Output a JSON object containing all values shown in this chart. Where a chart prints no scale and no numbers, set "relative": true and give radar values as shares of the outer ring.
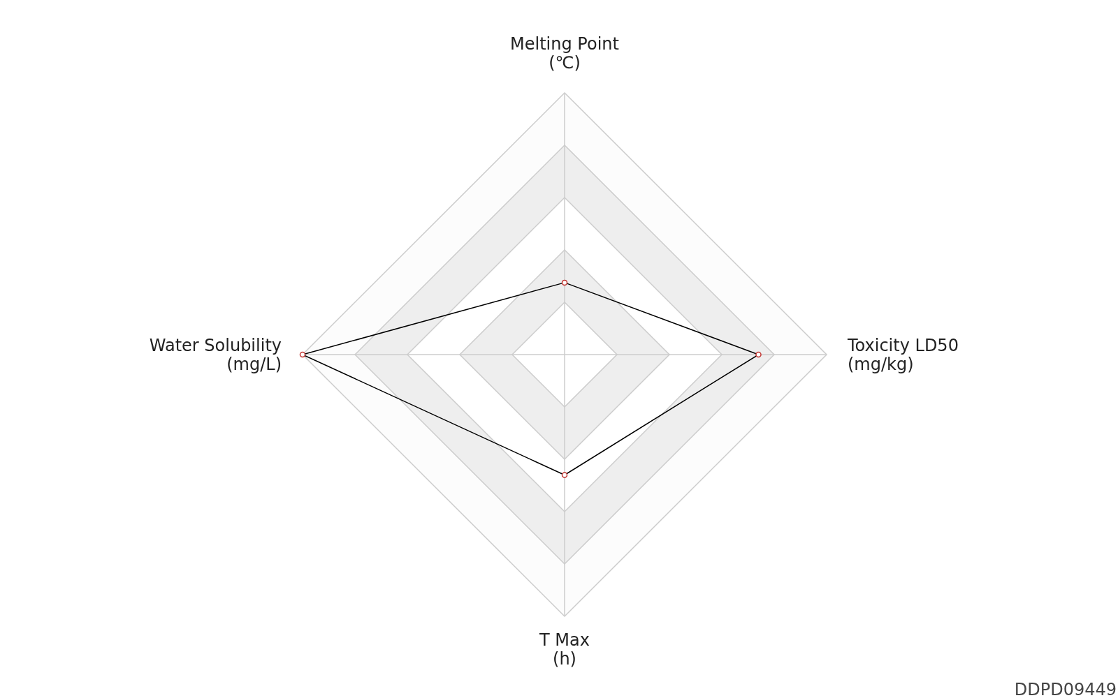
{
  "chart_data": {
    "type": "radar",
    "relative": true,
    "categories": [
      "Melting Point\n(℃)",
      "Toxicity LD50\n(mg/kg)",
      "T Max\n(h)",
      "Water Solubility\n(mg/L)"
    ],
    "series": [
      {
        "color": "#000000",
        "values": [
          0.275,
          0.74,
          0.46,
          1.0
        ]
      }
    ],
    "marker": "circle",
    "annotations": [
      "DDPD09449"
    ]
  }
}
